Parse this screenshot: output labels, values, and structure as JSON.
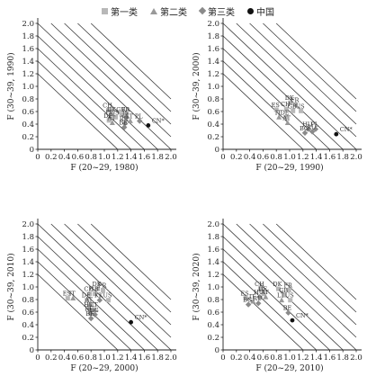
{
  "legend": {
    "items": [
      {
        "label": "第一类",
        "marker": "square",
        "color": "#b8b8b8"
      },
      {
        "label": "第二类",
        "marker": "triangle",
        "color": "#999999"
      },
      {
        "label": "第三类",
        "marker": "diamond",
        "color": "#8a8a8a"
      },
      {
        "label": "中国",
        "marker": "circle",
        "color": "#111111"
      }
    ]
  },
  "chart_data": [
    {
      "type": "scatter",
      "xlabel": "F (20~29, 1980)",
      "ylabel": "F (30~39, 1990)",
      "xlim": [
        0,
        2.0
      ],
      "ylim": [
        0,
        2.0
      ],
      "x_ticks": [
        "0",
        "0.2",
        "0.4",
        "0.6",
        "0.8",
        "1.0",
        "1.2",
        "1.4",
        "1.6",
        "1.8",
        "2.0"
      ],
      "y_ticks": [
        "0",
        "0.2",
        "0.4",
        "0.6",
        "0.8",
        "1.0",
        "1.2",
        "1.4",
        "1.6",
        "1.8",
        "2.0"
      ],
      "diagonals": [
        1.2,
        1.4,
        1.6,
        1.8,
        2.0,
        2.2,
        2.4,
        2.6,
        2.8
      ],
      "points": [
        {
          "label": "CH",
          "x": 1.06,
          "y": 0.62,
          "group": 1
        },
        {
          "label": "DK",
          "x": 1.12,
          "y": 0.56,
          "group": 1
        },
        {
          "label": "GB",
          "x": 1.26,
          "y": 0.56,
          "group": 1
        },
        {
          "label": "FR",
          "x": 1.33,
          "y": 0.56,
          "group": 1
        },
        {
          "label": "IT",
          "x": 1.08,
          "y": 0.51,
          "group": 2
        },
        {
          "label": "US",
          "x": 1.17,
          "y": 0.51,
          "group": 1
        },
        {
          "label": "JS",
          "x": 1.33,
          "y": 0.51,
          "group": 3
        },
        {
          "label": "DE",
          "x": 1.07,
          "y": 0.46,
          "group": 1
        },
        {
          "label": "AT",
          "x": 1.12,
          "y": 0.42,
          "group": 2
        },
        {
          "label": "LT",
          "x": 1.39,
          "y": 0.45,
          "group": 2
        },
        {
          "label": "PL",
          "x": 1.53,
          "y": 0.45,
          "group": 3
        },
        {
          "label": "RU",
          "x": 1.31,
          "y": 0.41,
          "group": 3
        },
        {
          "label": "BE",
          "x": 1.3,
          "y": 0.35,
          "group": 3
        },
        {
          "label": "CN*",
          "x": 1.66,
          "y": 0.38,
          "group": 4
        }
      ]
    },
    {
      "type": "scatter",
      "xlabel": "F (20~29, 1990)",
      "ylabel": "F (30~39, 2000)",
      "xlim": [
        0,
        2.0
      ],
      "ylim": [
        0,
        2.0
      ],
      "x_ticks": [
        "0",
        "0.2",
        "0.4",
        "0.6",
        "0.8",
        "1.0",
        "1.2",
        "1.4",
        "1.6",
        "1.8",
        "2.0"
      ],
      "y_ticks": [
        "0",
        "0.2",
        "0.4",
        "0.6",
        "0.8",
        "1.0",
        "1.2",
        "1.4",
        "1.6",
        "1.8",
        "2.0"
      ],
      "diagonals": [
        1.2,
        1.4,
        1.6,
        1.8,
        2.0,
        2.2,
        2.4,
        2.6,
        2.8
      ],
      "points": [
        {
          "label": "DK",
          "x": 1.01,
          "y": 0.74,
          "group": 1
        },
        {
          "label": "FR",
          "x": 1.09,
          "y": 0.71,
          "group": 1
        },
        {
          "label": "ES",
          "x": 0.8,
          "y": 0.63,
          "group": 1
        },
        {
          "label": "CH",
          "x": 0.95,
          "y": 0.64,
          "group": 1
        },
        {
          "label": "GB",
          "x": 1.05,
          "y": 0.61,
          "group": 1
        },
        {
          "label": "US",
          "x": 1.17,
          "y": 0.61,
          "group": 1
        },
        {
          "label": "IT",
          "x": 0.84,
          "y": 0.51,
          "group": 2
        },
        {
          "label": "DE",
          "x": 0.94,
          "y": 0.51,
          "group": 1
        },
        {
          "label": "AT",
          "x": 0.97,
          "y": 0.42,
          "group": 2
        },
        {
          "label": "HU",
          "x": 1.28,
          "y": 0.32,
          "group": 3
        },
        {
          "label": "PL",
          "x": 1.39,
          "y": 0.32,
          "group": 3
        },
        {
          "label": "BG",
          "x": 1.23,
          "y": 0.26,
          "group": 3
        },
        {
          "label": "RU",
          "x": 1.34,
          "y": 0.28,
          "group": 3
        },
        {
          "label": "CN*",
          "x": 1.7,
          "y": 0.24,
          "group": 4
        }
      ]
    },
    {
      "type": "scatter",
      "xlabel": "F (20~29, 2000)",
      "ylabel": "F (30~39, 2010)",
      "xlim": [
        0,
        2.0
      ],
      "ylim": [
        0,
        2.0
      ],
      "x_ticks": [
        "0",
        "0.2",
        "0.4",
        "0.6",
        "0.8",
        "1.0",
        "1.2",
        "1.4",
        "1.6",
        "1.8",
        "2.0"
      ],
      "y_ticks": [
        "0",
        "0.2",
        "0.4",
        "0.6",
        "0.8",
        "1.0",
        "1.2",
        "1.4",
        "1.6",
        "1.8",
        "2.0"
      ],
      "diagonals": [
        1.2,
        1.4,
        1.6,
        1.8,
        2.0,
        2.2,
        2.4,
        2.6,
        2.8
      ],
      "points": [
        {
          "label": "DK",
          "x": 0.9,
          "y": 0.97,
          "group": 1
        },
        {
          "label": "FR",
          "x": 0.98,
          "y": 0.95,
          "group": 1
        },
        {
          "label": "CH",
          "x": 0.78,
          "y": 0.89,
          "group": 1
        },
        {
          "label": "GB",
          "x": 0.86,
          "y": 0.89,
          "group": 1
        },
        {
          "label": "ES",
          "x": 0.45,
          "y": 0.82,
          "group": 1
        },
        {
          "label": "IT",
          "x": 0.53,
          "y": 0.82,
          "group": 2
        },
        {
          "label": "DE",
          "x": 0.74,
          "y": 0.79,
          "group": 1
        },
        {
          "label": "KK",
          "x": 0.93,
          "y": 0.79,
          "group": 3
        },
        {
          "label": "US",
          "x": 1.06,
          "y": 0.79,
          "group": 1
        },
        {
          "label": "AT",
          "x": 0.78,
          "y": 0.72,
          "group": 2
        },
        {
          "label": "HU",
          "x": 0.78,
          "y": 0.64,
          "group": 3
        },
        {
          "label": "LT",
          "x": 0.86,
          "y": 0.64,
          "group": 2
        },
        {
          "label": "RU",
          "x": 0.79,
          "y": 0.58,
          "group": 3
        },
        {
          "label": "BG",
          "x": 0.86,
          "y": 0.56,
          "group": 3
        },
        {
          "label": "BE",
          "x": 0.8,
          "y": 0.5,
          "group": 3
        },
        {
          "label": "CN*",
          "x": 1.4,
          "y": 0.44,
          "group": 4
        }
      ]
    },
    {
      "type": "scatter",
      "xlabel": "F (20~29, 2010)",
      "ylabel": "F (30~39, 2020)",
      "xlim": [
        0,
        2.0
      ],
      "ylim": [
        0,
        2.0
      ],
      "x_ticks": [
        "0",
        "0.2",
        "0.4",
        "0.6",
        "0.8",
        "1.0",
        "1.2",
        "1.4",
        "1.6",
        "1.8",
        "2.0"
      ],
      "y_ticks": [
        "0",
        "0.2",
        "0.4",
        "0.6",
        "0.8",
        "1.0",
        "1.2",
        "1.4",
        "1.6",
        "1.8",
        "2.0"
      ],
      "diagonals": [
        1.2,
        1.4,
        1.6,
        1.8,
        2.0,
        2.2,
        2.4,
        2.6,
        2.8
      ],
      "points": [
        {
          "label": "CH",
          "x": 0.56,
          "y": 0.97,
          "group": 1
        },
        {
          "label": "DK",
          "x": 0.83,
          "y": 0.97,
          "group": 1
        },
        {
          "label": "FR",
          "x": 0.99,
          "y": 0.95,
          "group": 1
        },
        {
          "label": "DE",
          "x": 0.61,
          "y": 0.89,
          "group": 1
        },
        {
          "label": "GB",
          "x": 0.92,
          "y": 0.87,
          "group": 1
        },
        {
          "label": "ES",
          "x": 0.34,
          "y": 0.82,
          "group": 1
        },
        {
          "label": "HU",
          "x": 0.55,
          "y": 0.84,
          "group": 3
        },
        {
          "label": "AT",
          "x": 0.64,
          "y": 0.84,
          "group": 2
        },
        {
          "label": "LT",
          "x": 0.88,
          "y": 0.79,
          "group": 2
        },
        {
          "label": "US",
          "x": 1.01,
          "y": 0.79,
          "group": 1
        },
        {
          "label": "IT",
          "x": 0.45,
          "y": 0.77,
          "group": 2
        },
        {
          "label": "RU",
          "x": 0.53,
          "y": 0.74,
          "group": 3
        },
        {
          "label": "BG",
          "x": 0.38,
          "y": 0.72,
          "group": 3
        },
        {
          "label": "BE",
          "x": 0.98,
          "y": 0.59,
          "group": 3
        },
        {
          "label": "CN*",
          "x": 1.04,
          "y": 0.47,
          "group": 4
        }
      ]
    }
  ]
}
